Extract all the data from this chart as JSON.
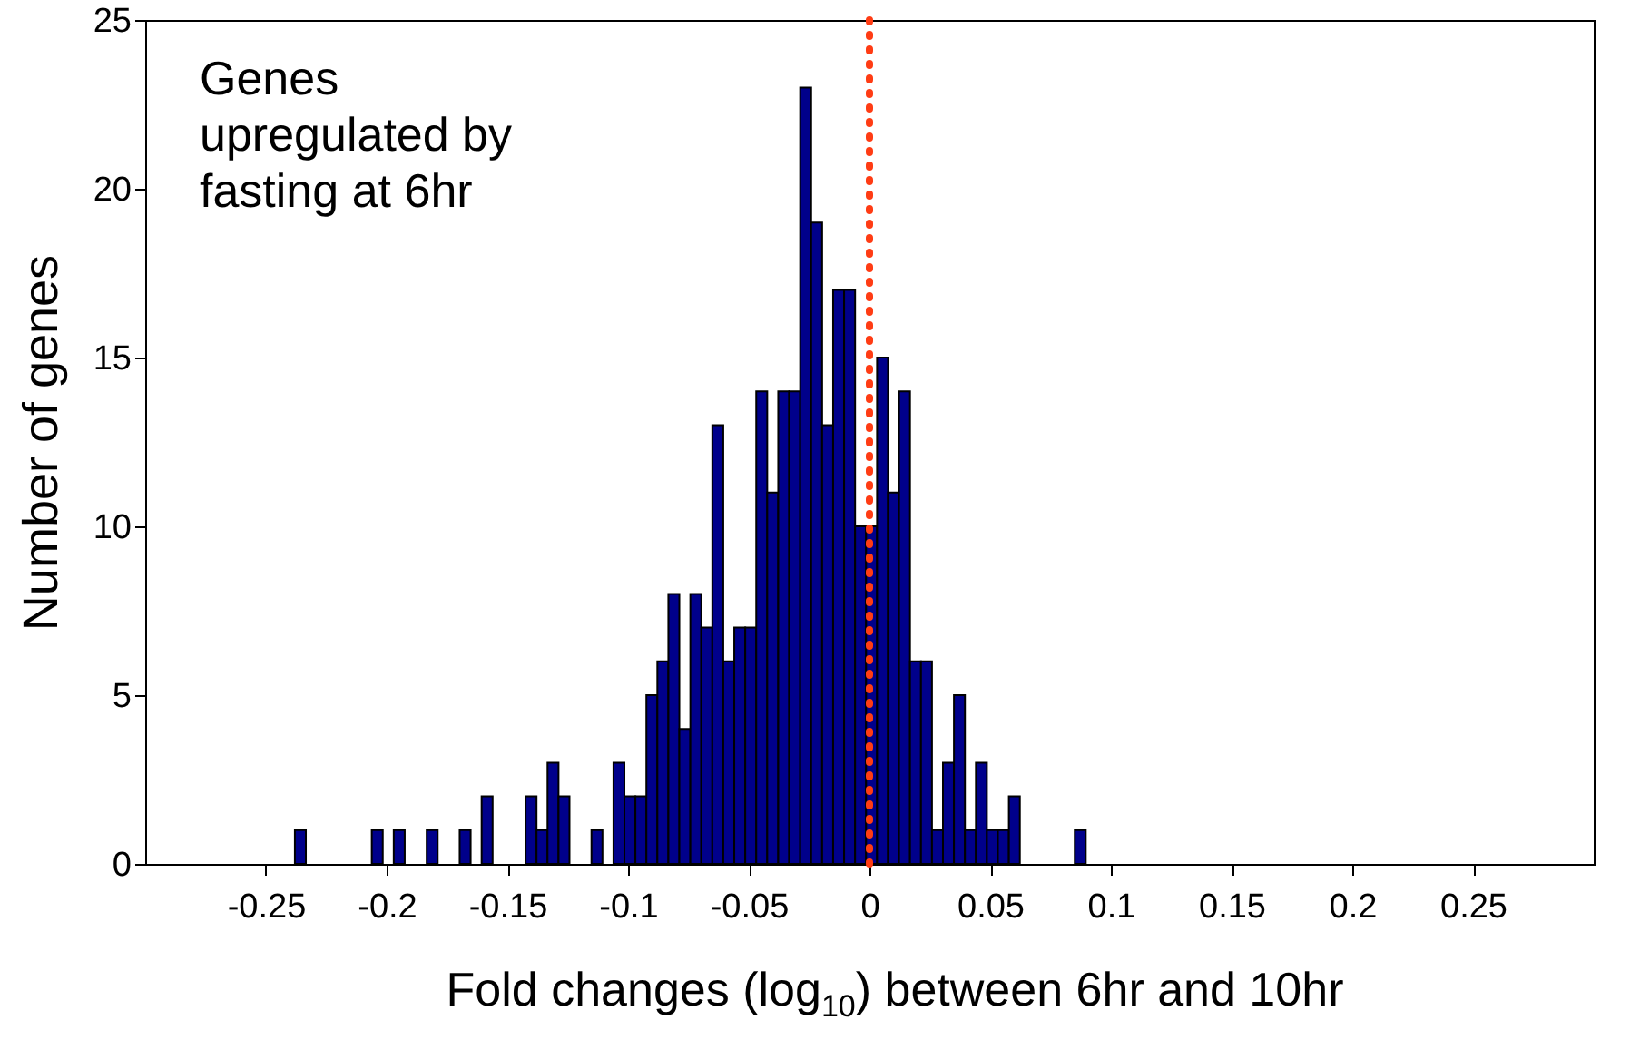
{
  "chart_data": {
    "type": "histogram",
    "xlabel": "Fold changes (log$_{10}$) between 6hr and 10hr",
    "ylabel": "Number of genes",
    "bins": [
      -0.238,
      -0.23345,
      -0.2289,
      -0.22435,
      -0.2198,
      -0.21525,
      -0.2107,
      -0.20615,
      -0.2016,
      -0.19705,
      -0.1925,
      -0.18795,
      -0.1834,
      -0.17885,
      -0.1743,
      -0.16975,
      -0.1652,
      -0.16065,
      -0.1561,
      -0.15155,
      -0.147,
      -0.14245,
      -0.1379,
      -0.13335,
      -0.1288,
      -0.12425,
      -0.1197,
      -0.11515,
      -0.1106,
      -0.10605,
      -0.1015,
      -0.09695,
      -0.0924,
      -0.08785,
      -0.0833,
      -0.07875,
      -0.0742,
      -0.06965,
      -0.0651,
      -0.06055,
      -0.056,
      -0.05145,
      -0.0469,
      -0.04235,
      -0.0378,
      -0.03325,
      -0.0287,
      -0.02415,
      -0.0196,
      -0.01505,
      -0.0105,
      -0.00595,
      -0.0014,
      0.00315,
      0.0077,
      0.01225,
      0.0168,
      0.02135,
      0.0259,
      0.03045,
      0.035,
      0.03955,
      0.0441,
      0.04865,
      0.0532,
      0.05775,
      0.0623,
      0.06685,
      0.0714,
      0.07595,
      0.0805,
      0.08505,
      0.0896
    ],
    "values": [
      1,
      0,
      0,
      0,
      0,
      0,
      0,
      1,
      0,
      1,
      0,
      0,
      1,
      0,
      0,
      1,
      0,
      2,
      0,
      0,
      0,
      2,
      1,
      3,
      2,
      0,
      0,
      1,
      0,
      3,
      2,
      2,
      5,
      6,
      8,
      4,
      8,
      7,
      13,
      6,
      7,
      7,
      14,
      11,
      14,
      14,
      23,
      19,
      13,
      17,
      17,
      10,
      10,
      15,
      11,
      14,
      6,
      6,
      1,
      3,
      5,
      1,
      3,
      1,
      1,
      2,
      0,
      0,
      0,
      0,
      0,
      1
    ],
    "color": "#00008b",
    "xlim": [
      -0.3,
      0.3
    ],
    "xticks": [
      -0.25,
      -0.2,
      -0.15,
      -0.1,
      -0.05,
      0,
      0.05,
      0.1,
      0.15,
      0.2,
      0.25
    ],
    "ylim": [
      0,
      25
    ],
    "yticks": [
      0,
      5,
      10,
      15,
      20,
      25
    ],
    "grid": false,
    "ref_lines": [
      {
        "axis": "x",
        "value": 0,
        "color": "#ff3c14",
        "line_style": "dotted"
      }
    ],
    "annotations": [
      "Genes\nupregulated by\nfasting at 6hr"
    ]
  }
}
